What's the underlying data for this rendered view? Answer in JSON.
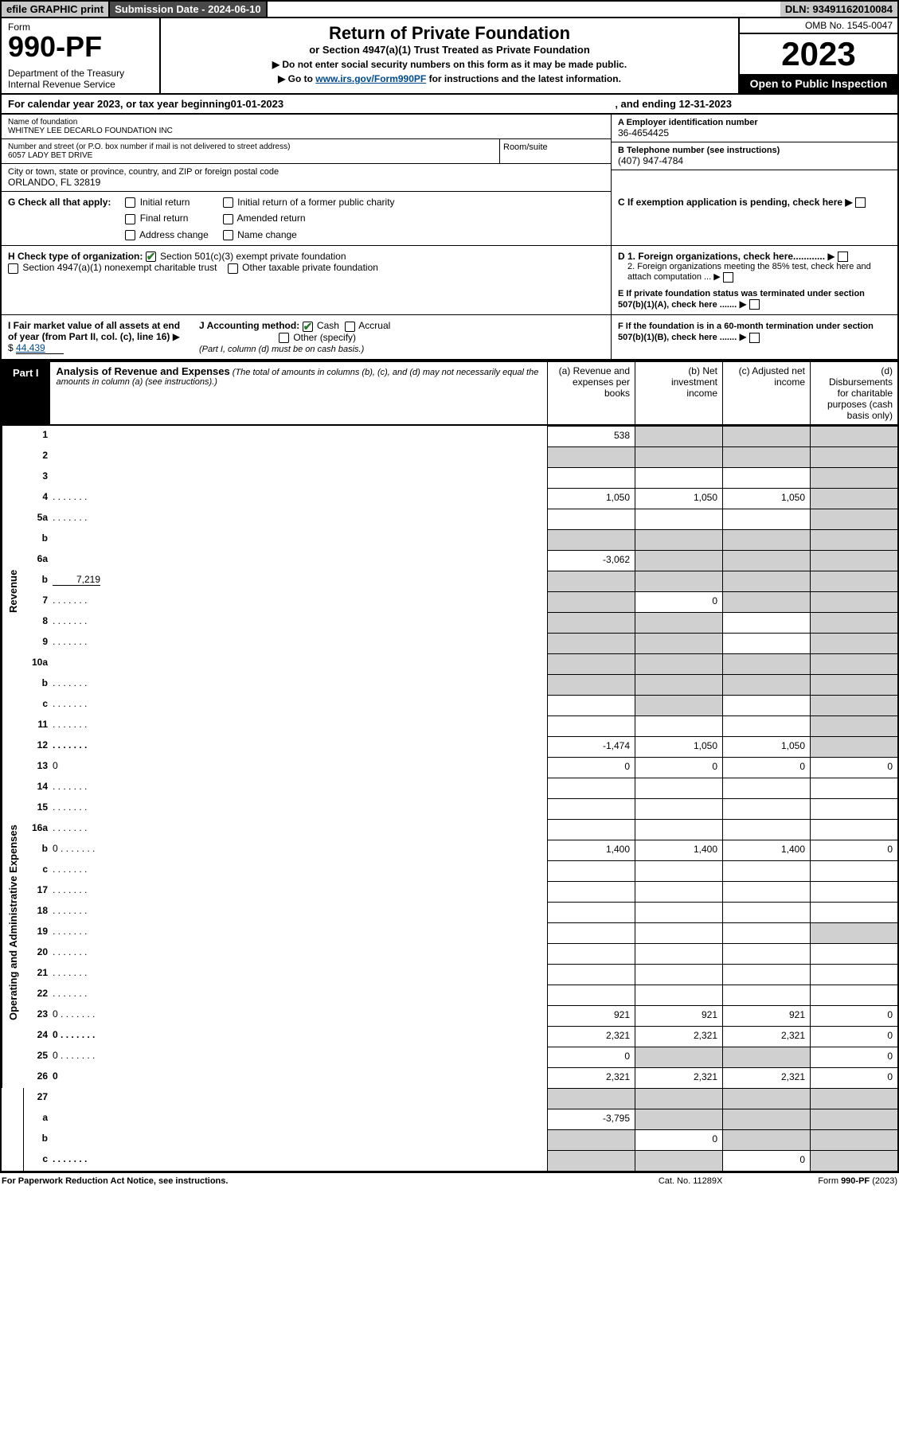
{
  "topbar": {
    "efile": "efile GRAPHIC print",
    "subdate": "Submission Date - 2024-06-10",
    "dln": "DLN: 93491162010084"
  },
  "header": {
    "form_label": "Form",
    "form_num": "990-PF",
    "dept": "Department of the Treasury\nInternal Revenue Service",
    "title": "Return of Private Foundation",
    "subtitle": "or Section 4947(a)(1) Trust Treated as Private Foundation",
    "inst1": "▶ Do not enter social security numbers on this form as it may be made public.",
    "inst2_pre": "▶ Go to ",
    "inst2_link": "www.irs.gov/Form990PF",
    "inst2_post": " for instructions and the latest information.",
    "omb": "OMB No. 1545-0047",
    "year": "2023",
    "otpi": "Open to Public Inspection"
  },
  "cal": {
    "pre": "For calendar year 2023, or tax year beginning ",
    "begin": "01-01-2023",
    "mid": " , and ending ",
    "end": "12-31-2023"
  },
  "name_block": {
    "label": "Name of foundation",
    "name": "WHITNEY LEE DECARLO FOUNDATION INC",
    "addr_label": "Number and street (or P.O. box number if mail is not delivered to street address)",
    "addr": "6057 LADY BET DRIVE",
    "room_label": "Room/suite",
    "city_label": "City or town, state or province, country, and ZIP or foreign postal code",
    "city": "ORLANDO, FL  32819"
  },
  "right_block": {
    "a_label": "A Employer identification number",
    "a_val": "36-4654425",
    "b_label": "B Telephone number (see instructions)",
    "b_val": "(407) 947-4784",
    "c_label": "C If exemption application is pending, check here",
    "d1": "D 1. Foreign organizations, check here............",
    "d2": "2. Foreign organizations meeting the 85% test, check here and attach computation ...",
    "e": "E  If private foundation status was terminated under section 507(b)(1)(A), check here .......",
    "f": "F  If the foundation is in a 60-month termination under section 507(b)(1)(B), check here ......."
  },
  "g": {
    "label": "G Check all that apply:",
    "opts": [
      "Initial return",
      "Final return",
      "Address change",
      "Initial return of a former public charity",
      "Amended return",
      "Name change"
    ]
  },
  "h": {
    "label": "H Check type of organization:",
    "opt1": "Section 501(c)(3) exempt private foundation",
    "opt2": "Section 4947(a)(1) nonexempt charitable trust",
    "opt3": "Other taxable private foundation"
  },
  "i": {
    "label": "I Fair market value of all assets at end of year (from Part II, col. (c), line 16)",
    "arrow": "▶ $",
    "val": "44,439"
  },
  "j": {
    "label": "J Accounting method:",
    "cash": "Cash",
    "accrual": "Accrual",
    "other": "Other (specify)",
    "note": "(Part I, column (d) must be on cash basis.)"
  },
  "part1": {
    "tab": "Part I",
    "title": "Analysis of Revenue and Expenses",
    "note": "(The total of amounts in columns (b), (c), and (d) may not necessarily equal the amounts in column (a) (see instructions).)",
    "col_a": "(a) Revenue and expenses per books",
    "col_b": "(b) Net investment income",
    "col_c": "(c) Adjusted net income",
    "col_d": "(d) Disbursements for charitable purposes (cash basis only)"
  },
  "sections": {
    "revenue": "Revenue",
    "expenses": "Operating and Administrative Expenses"
  },
  "rows": [
    {
      "sec": "rev",
      "n": "1",
      "d": "",
      "a": "538",
      "b": "",
      "c": "",
      "sh_b": true,
      "sh_c": true,
      "sh_d": true
    },
    {
      "sec": "rev",
      "n": "2",
      "d": "",
      "a": "",
      "b": "",
      "c": "",
      "sh_a": true,
      "sh_b": true,
      "sh_c": true,
      "sh_d": true,
      "cb": true,
      "bold_not": true
    },
    {
      "sec": "rev",
      "n": "3",
      "d": "",
      "a": "",
      "b": "",
      "c": "",
      "sh_d": true
    },
    {
      "sec": "rev",
      "n": "4",
      "d": "",
      "a": "1,050",
      "b": "1,050",
      "c": "1,050",
      "sh_d": true,
      "dots": true
    },
    {
      "sec": "rev",
      "n": "5a",
      "d": "",
      "a": "",
      "b": "",
      "c": "",
      "sh_d": true,
      "dots": true
    },
    {
      "sec": "rev",
      "n": "b",
      "d": "",
      "a": "",
      "b": "",
      "c": "",
      "sh_a": true,
      "sh_b": true,
      "sh_c": true,
      "sh_d": true,
      "inline": true
    },
    {
      "sec": "rev",
      "n": "6a",
      "d": "",
      "a": "-3,062",
      "b": "",
      "c": "",
      "sh_b": true,
      "sh_c": true,
      "sh_d": true
    },
    {
      "sec": "rev",
      "n": "b",
      "d": "",
      "a": "",
      "b": "",
      "c": "",
      "sh_a": true,
      "sh_b": true,
      "sh_c": true,
      "sh_d": true,
      "inline_val": "7,219"
    },
    {
      "sec": "rev",
      "n": "7",
      "d": "",
      "a": "",
      "b": "0",
      "c": "",
      "sh_a": true,
      "sh_c": true,
      "sh_d": true,
      "dots": true
    },
    {
      "sec": "rev",
      "n": "8",
      "d": "",
      "a": "",
      "b": "",
      "c": "",
      "sh_a": true,
      "sh_b": true,
      "sh_d": true,
      "dots": true
    },
    {
      "sec": "rev",
      "n": "9",
      "d": "",
      "a": "",
      "b": "",
      "c": "",
      "sh_a": true,
      "sh_b": true,
      "sh_d": true,
      "dots": true
    },
    {
      "sec": "rev",
      "n": "10a",
      "d": "",
      "a": "",
      "b": "",
      "c": "",
      "sh_a": true,
      "sh_b": true,
      "sh_c": true,
      "sh_d": true,
      "inline": true
    },
    {
      "sec": "rev",
      "n": "b",
      "d": "",
      "a": "",
      "b": "",
      "c": "",
      "sh_a": true,
      "sh_b": true,
      "sh_c": true,
      "sh_d": true,
      "dots": true,
      "inline": true
    },
    {
      "sec": "rev",
      "n": "c",
      "d": "",
      "a": "",
      "b": "",
      "c": "",
      "sh_b": true,
      "sh_d": true,
      "dots": true
    },
    {
      "sec": "rev",
      "n": "11",
      "d": "",
      "a": "",
      "b": "",
      "c": "",
      "sh_d": true,
      "dots": true
    },
    {
      "sec": "rev",
      "n": "12",
      "d": "",
      "a": "-1,474",
      "b": "1,050",
      "c": "1,050",
      "sh_d": true,
      "dots": true,
      "bold": true
    },
    {
      "sec": "exp",
      "n": "13",
      "d": "0",
      "a": "0",
      "b": "0",
      "c": "0"
    },
    {
      "sec": "exp",
      "n": "14",
      "d": "",
      "a": "",
      "b": "",
      "c": "",
      "dots": true
    },
    {
      "sec": "exp",
      "n": "15",
      "d": "",
      "a": "",
      "b": "",
      "c": "",
      "dots": true
    },
    {
      "sec": "exp",
      "n": "16a",
      "d": "",
      "a": "",
      "b": "",
      "c": "",
      "dots": true
    },
    {
      "sec": "exp",
      "n": "b",
      "d": "0",
      "a": "1,400",
      "b": "1,400",
      "c": "1,400",
      "dots": true
    },
    {
      "sec": "exp",
      "n": "c",
      "d": "",
      "a": "",
      "b": "",
      "c": "",
      "dots": true
    },
    {
      "sec": "exp",
      "n": "17",
      "d": "",
      "a": "",
      "b": "",
      "c": "",
      "dots": true
    },
    {
      "sec": "exp",
      "n": "18",
      "d": "",
      "a": "",
      "b": "",
      "c": "",
      "dots": true
    },
    {
      "sec": "exp",
      "n": "19",
      "d": "",
      "a": "",
      "b": "",
      "c": "",
      "sh_d": true,
      "dots": true
    },
    {
      "sec": "exp",
      "n": "20",
      "d": "",
      "a": "",
      "b": "",
      "c": "",
      "dots": true
    },
    {
      "sec": "exp",
      "n": "21",
      "d": "",
      "a": "",
      "b": "",
      "c": "",
      "dots": true
    },
    {
      "sec": "exp",
      "n": "22",
      "d": "",
      "a": "",
      "b": "",
      "c": "",
      "dots": true
    },
    {
      "sec": "exp",
      "n": "23",
      "d": "0",
      "a": "921",
      "b": "921",
      "c": "921",
      "dots": true
    },
    {
      "sec": "exp",
      "n": "24",
      "d": "0",
      "a": "2,321",
      "b": "2,321",
      "c": "2,321",
      "dots": true,
      "bold": true,
      "two_line": true
    },
    {
      "sec": "exp",
      "n": "25",
      "d": "0",
      "a": "0",
      "b": "",
      "c": "",
      "sh_b": true,
      "sh_c": true,
      "dots": true
    },
    {
      "sec": "exp",
      "n": "26",
      "d": "0",
      "a": "2,321",
      "b": "2,321",
      "c": "2,321",
      "bold": true
    },
    {
      "sec": "none",
      "n": "27",
      "d": "",
      "a": "",
      "b": "",
      "c": "",
      "sh_a": true,
      "sh_b": true,
      "sh_c": true,
      "sh_d": true
    },
    {
      "sec": "none",
      "n": "a",
      "d": "",
      "a": "-3,795",
      "b": "",
      "c": "",
      "sh_b": true,
      "sh_c": true,
      "sh_d": true,
      "bold": true
    },
    {
      "sec": "none",
      "n": "b",
      "d": "",
      "a": "",
      "b": "0",
      "c": "",
      "sh_a": true,
      "sh_c": true,
      "sh_d": true,
      "bold": true
    },
    {
      "sec": "none",
      "n": "c",
      "d": "",
      "a": "",
      "b": "",
      "c": "0",
      "sh_a": true,
      "sh_b": true,
      "sh_d": true,
      "bold": true,
      "dots": true
    }
  ],
  "footer": {
    "left": "For Paperwork Reduction Act Notice, see instructions.",
    "mid": "Cat. No. 11289X",
    "right": "Form 990-PF (2023)"
  }
}
